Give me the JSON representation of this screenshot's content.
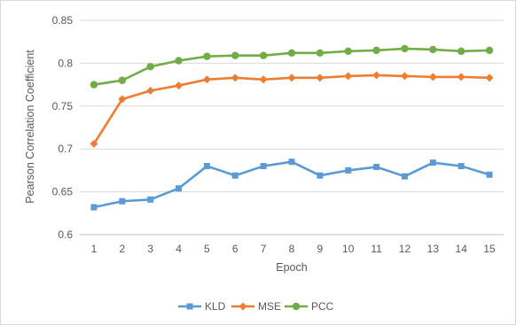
{
  "chart_data": {
    "type": "line",
    "title": "",
    "xlabel": "Epoch",
    "ylabel": "Pearson Correlation Coefficient",
    "categories": [
      "1",
      "2",
      "3",
      "4",
      "5",
      "6",
      "7",
      "8",
      "9",
      "10",
      "11",
      "12",
      "13",
      "14",
      "15"
    ],
    "ylim": [
      0.6,
      0.85
    ],
    "yticks": [
      "0.6",
      "0.65",
      "0.7",
      "0.75",
      "0.8",
      "0.85"
    ],
    "grid": "horizontal",
    "legend": "bottom",
    "series": [
      {
        "name": "KLD",
        "color": "#5b9bd5",
        "marker": "square",
        "values": [
          0.632,
          0.639,
          0.641,
          0.654,
          0.68,
          0.669,
          0.68,
          0.685,
          0.669,
          0.675,
          0.679,
          0.668,
          0.684,
          0.68,
          0.67
        ]
      },
      {
        "name": "MSE",
        "color": "#ed7d31",
        "marker": "diamond",
        "values": [
          0.706,
          0.758,
          0.768,
          0.774,
          0.781,
          0.783,
          0.781,
          0.783,
          0.783,
          0.785,
          0.786,
          0.785,
          0.784,
          0.784,
          0.783
        ]
      },
      {
        "name": "PCC",
        "color": "#70ad47",
        "marker": "circle",
        "values": [
          0.775,
          0.78,
          0.796,
          0.803,
          0.808,
          0.809,
          0.809,
          0.812,
          0.812,
          0.814,
          0.815,
          0.817,
          0.816,
          0.814,
          0.815
        ]
      }
    ]
  }
}
